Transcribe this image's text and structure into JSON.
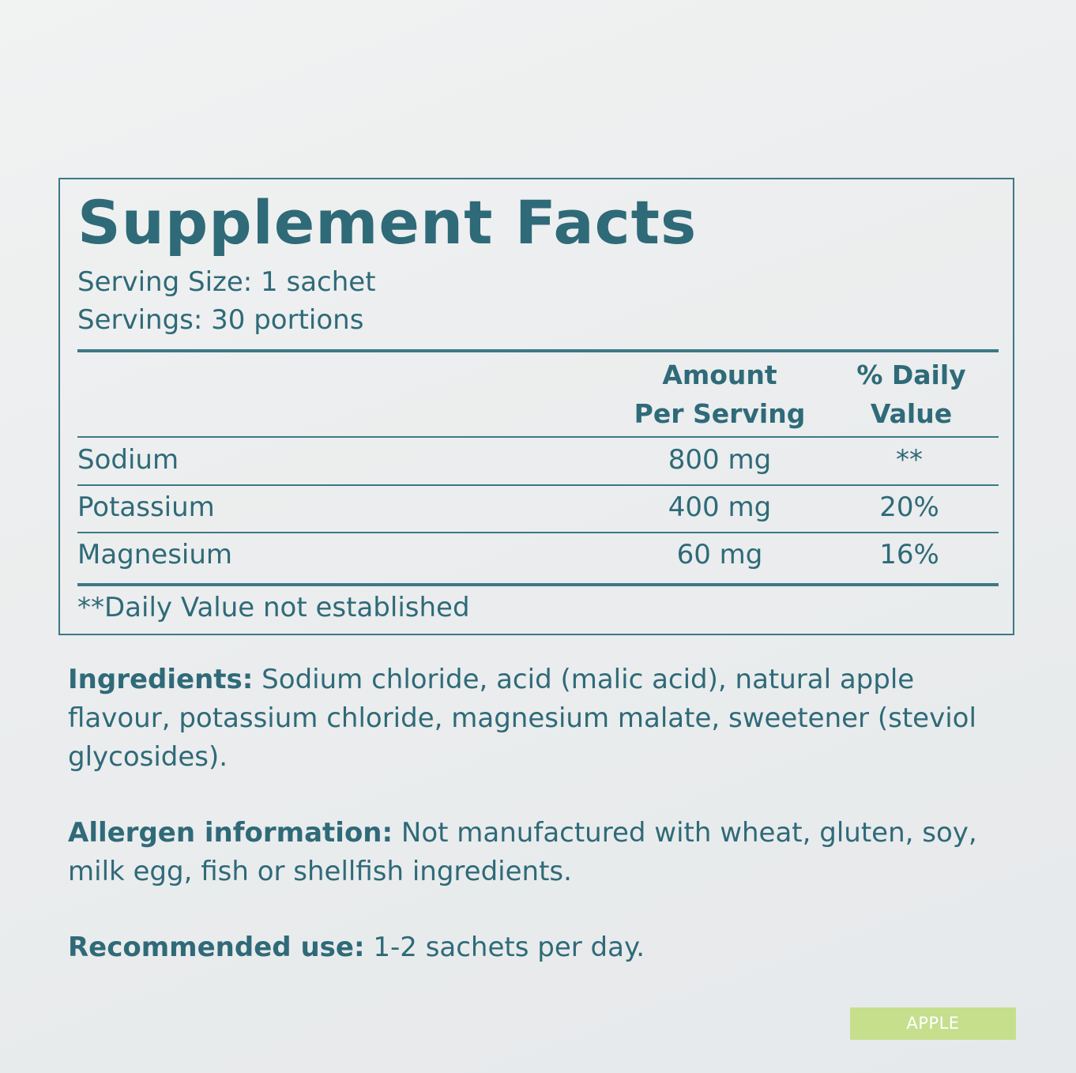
{
  "facts": {
    "title": "Supplement Facts",
    "serving_size": "Serving Size: 1 sachet",
    "servings": "Servings: 30 portions",
    "header_amount_line1": "Amount",
    "header_amount_line2": "Per Serving",
    "header_dv_line1": "% Daily",
    "header_dv_line2": "Value",
    "rows": [
      {
        "name": "Sodium",
        "amount": "800 mg",
        "dv": "**"
      },
      {
        "name": "Potassium",
        "amount": "400 mg",
        "dv": "20%"
      },
      {
        "name": "Magnesium",
        "amount": "60 mg",
        "dv": "16%"
      }
    ],
    "footnote": "**Daily Value not established"
  },
  "ingredients": {
    "label": "Ingredients:",
    "text": " Sodium chloride, acid (malic acid), natural apple flavour, potassium chloride, magnesium malate, sweetener (steviol glycosides)."
  },
  "allergen": {
    "label": "Allergen information:",
    "text": " Not manufactured with wheat, gluten, soy, milk egg, fish or shellfish ingredients."
  },
  "recommended": {
    "label": "Recommended use:",
    "text": " 1-2 sachets per day."
  },
  "flavor_badge": "APPLE",
  "colors": {
    "text": "#2f6a78",
    "border": "#3d7886",
    "badge": "#c5df8d"
  }
}
